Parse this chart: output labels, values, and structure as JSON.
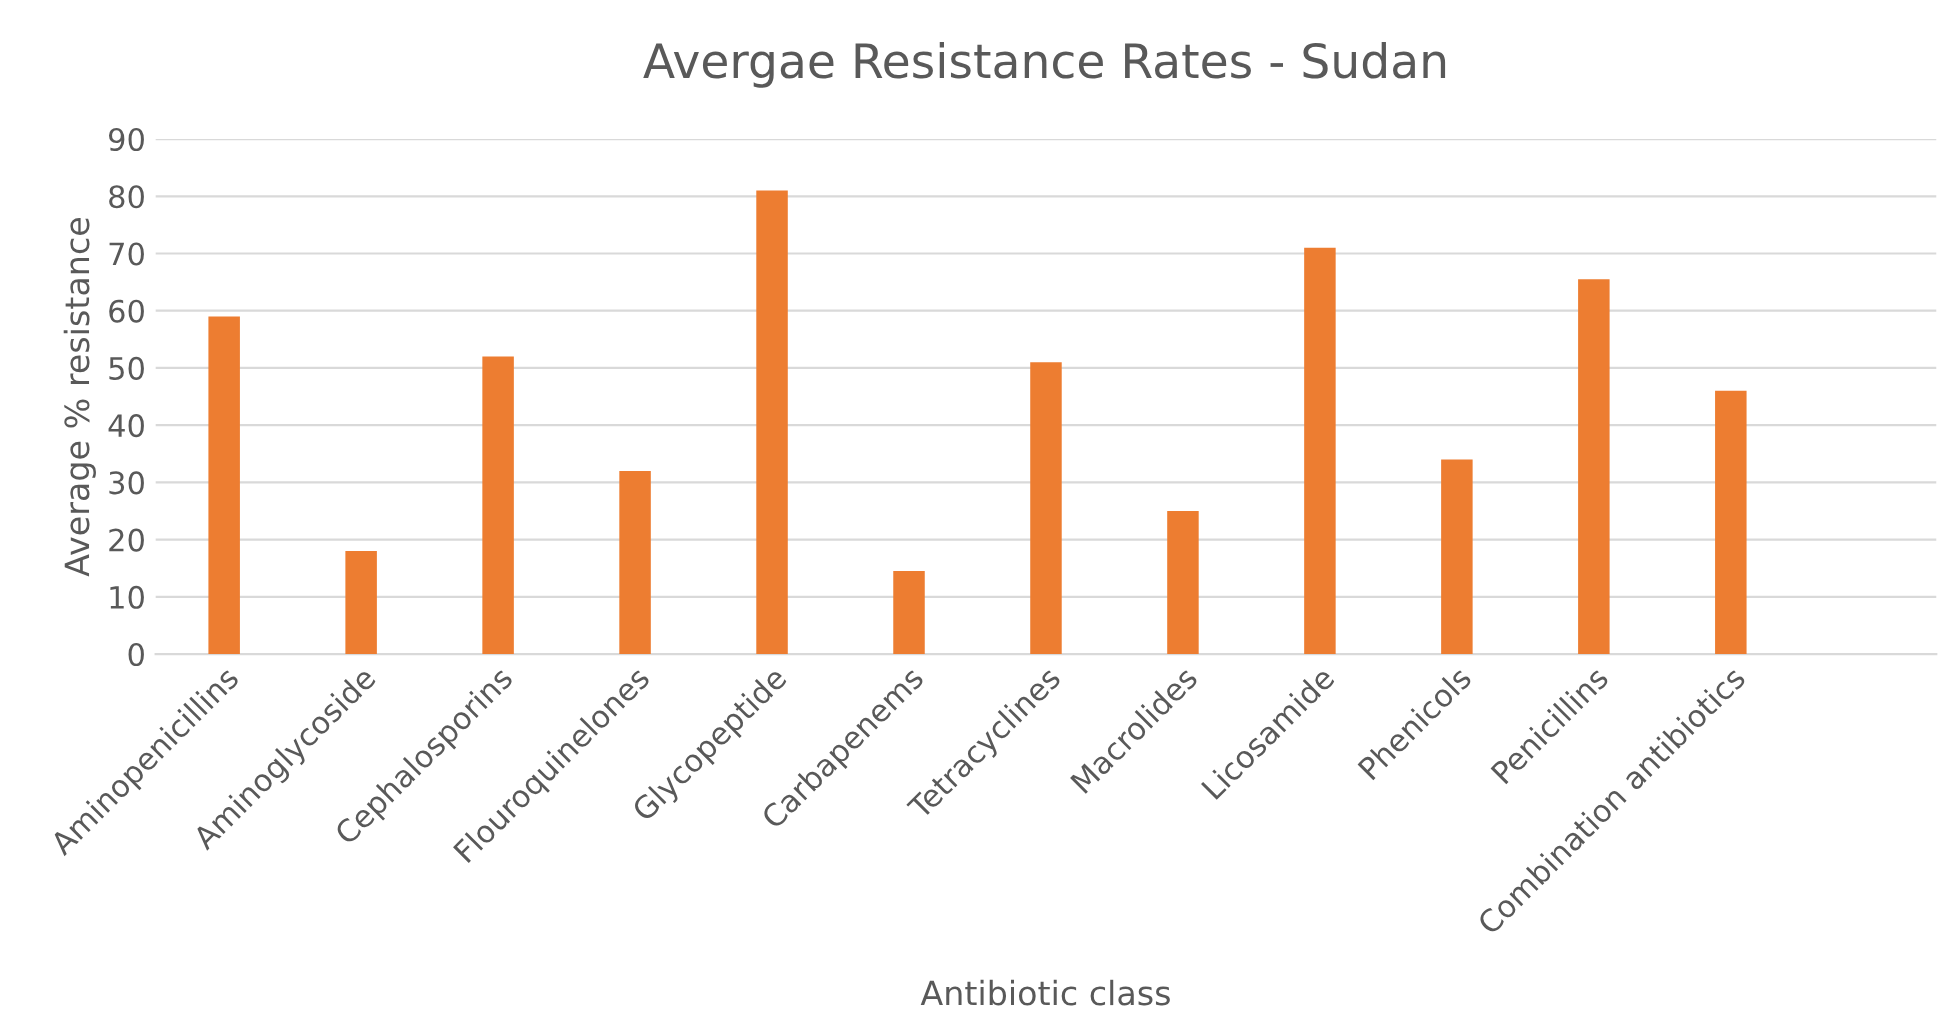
{
  "chart_data": {
    "type": "bar",
    "title": "Avergae Resistance Rates - Sudan",
    "xlabel": "Antibiotic class",
    "ylabel": "Average % resistance",
    "categories": [
      "Aminopenicillins",
      "Aminoglycoside",
      "Cephalosporins",
      "Flouroquinelones",
      "Glycopeptide",
      "Carbapenems",
      "Tetracyclines",
      "Macrolides",
      "Licosamide",
      "Phenicols",
      "Penicillins",
      "Combination antibiotics",
      null
    ],
    "values": [
      59,
      18,
      52,
      32,
      81,
      14.5,
      51,
      25,
      71,
      34,
      65.5,
      46,
      null
    ],
    "color": "#ed7d31",
    "ylim": [
      0,
      90
    ],
    "yticks": [
      0,
      10,
      20,
      30,
      40,
      50,
      60,
      70,
      80,
      90
    ],
    "grid": "y",
    "legend": false
  }
}
